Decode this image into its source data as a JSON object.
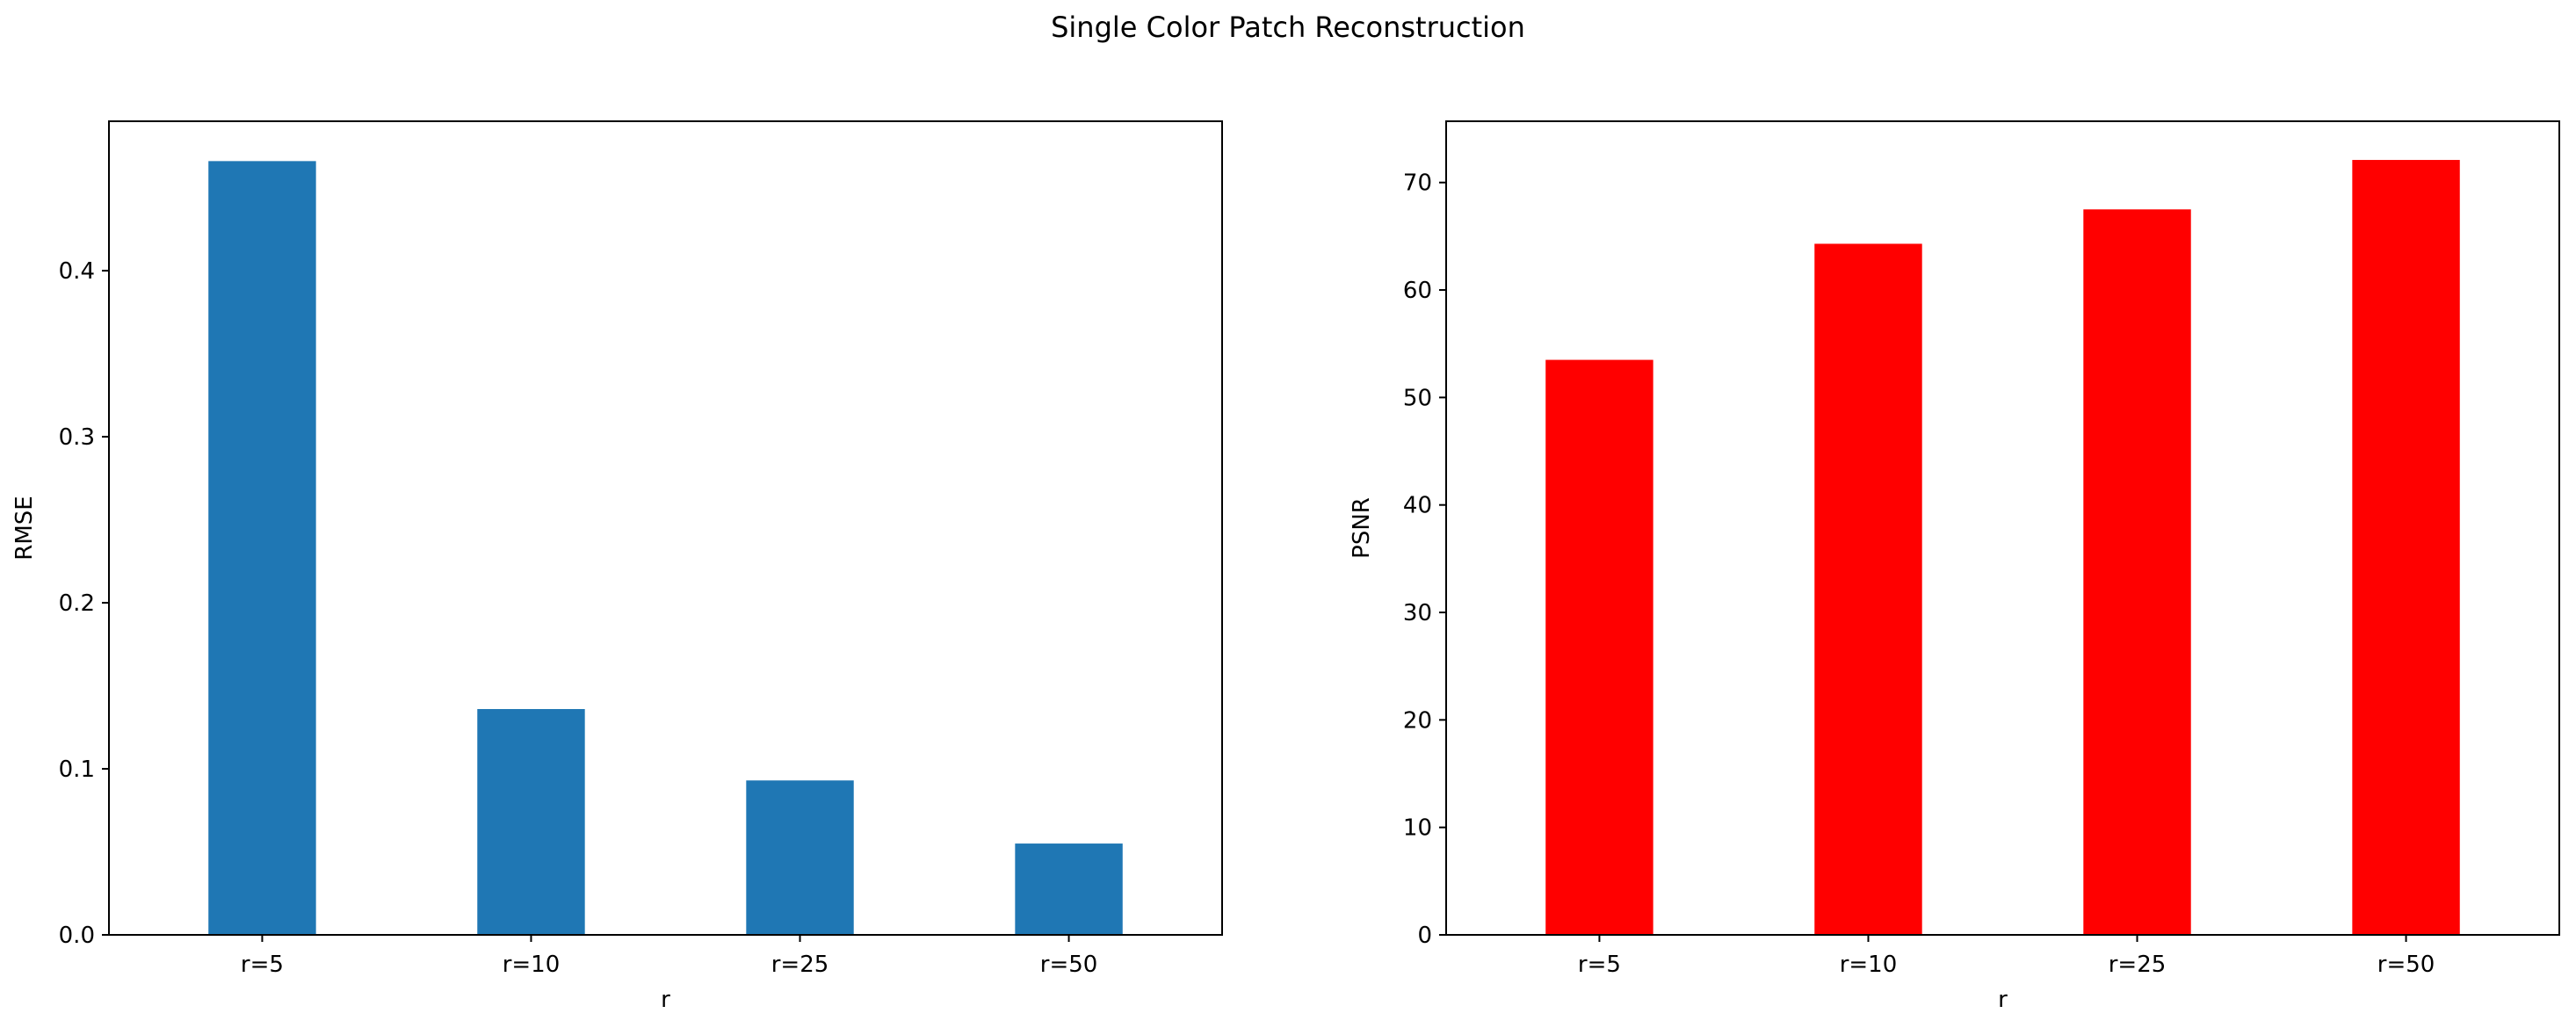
{
  "figure": {
    "title": "Single Color Patch Reconstruction"
  },
  "chart_data": [
    {
      "type": "bar",
      "categories": [
        "r=5",
        "r=10",
        "r=25",
        "r=50"
      ],
      "values": [
        0.466,
        0.136,
        0.093,
        0.055
      ],
      "title": "",
      "xlabel": "r",
      "ylabel": "RMSE",
      "ylim": [
        0,
        0.49
      ],
      "yticks": [
        0.0,
        0.1,
        0.2,
        0.3,
        0.4
      ],
      "ytick_labels": [
        "0.0",
        "0.1",
        "0.2",
        "0.3",
        "0.4"
      ],
      "color": "#1f77b4",
      "grid": false,
      "legend": "none"
    },
    {
      "type": "bar",
      "categories": [
        "r=5",
        "r=10",
        "r=25",
        "r=50"
      ],
      "values": [
        53.5,
        64.3,
        67.5,
        72.1
      ],
      "title": "",
      "xlabel": "r",
      "ylabel": "PSNR",
      "ylim": [
        0,
        75.7
      ],
      "yticks": [
        0,
        10,
        20,
        30,
        40,
        50,
        60,
        70
      ],
      "ytick_labels": [
        "0",
        "10",
        "20",
        "30",
        "40",
        "50",
        "60",
        "70"
      ],
      "color": "#ff0000",
      "grid": false,
      "legend": "none"
    }
  ]
}
